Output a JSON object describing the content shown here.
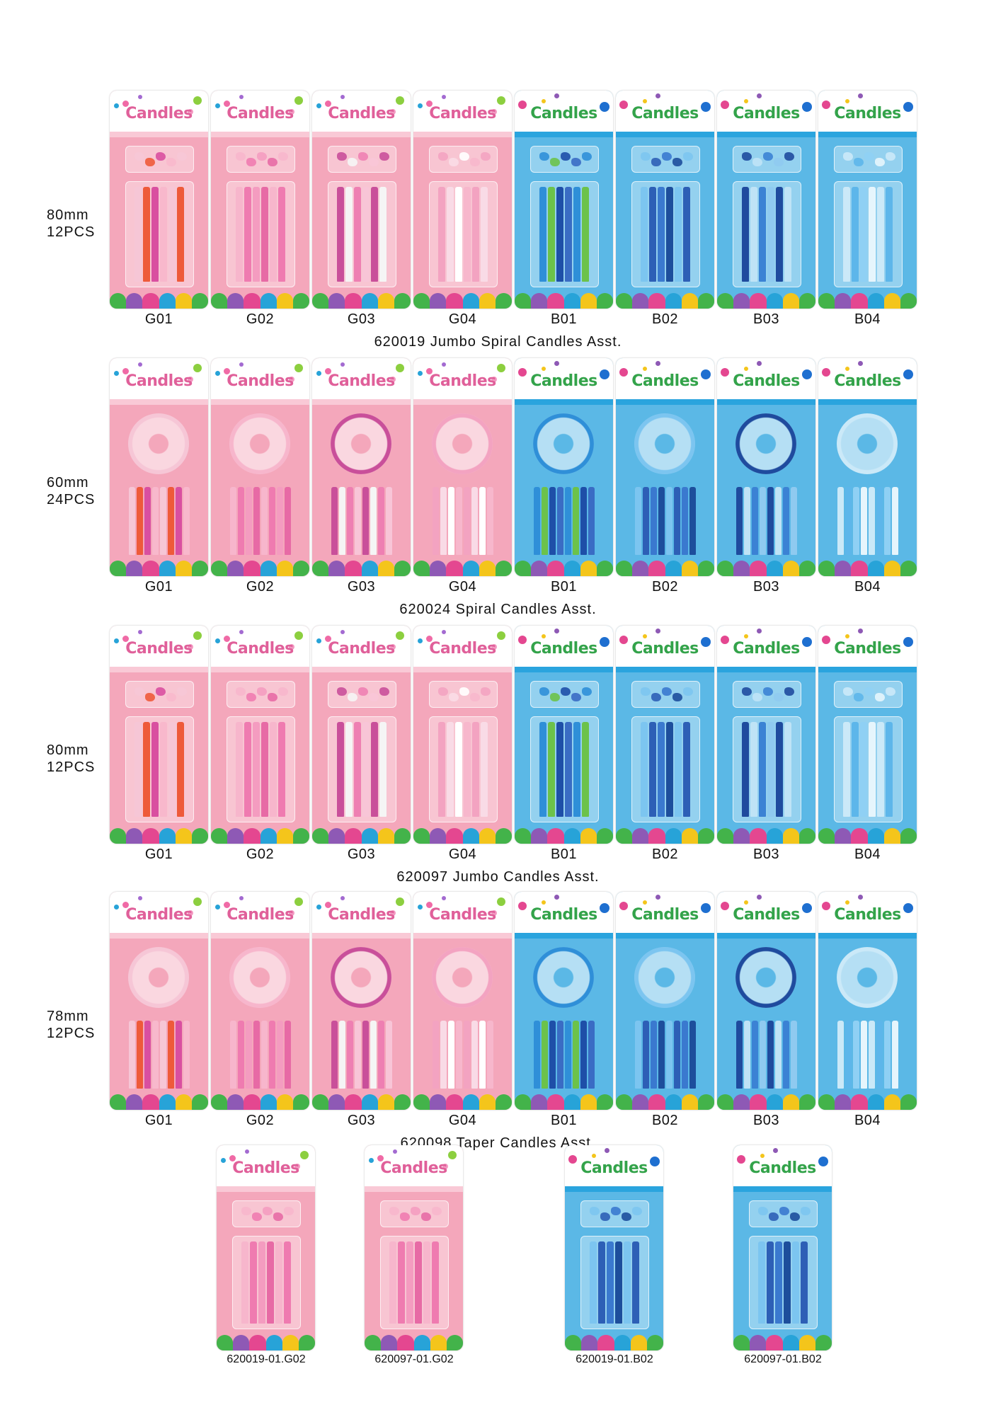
{
  "card_title": "Candles",
  "colors": {
    "pink_bg": "#f4a7bb",
    "blue_bg": "#5bb8e6",
    "pink_band": "#f9c9d6",
    "blue_band": "#2aa4de"
  },
  "sections": [
    {
      "spec_size": "80mm",
      "spec_count": "12PCS",
      "caption": "620019  Jumbo Spiral Candles Asst.",
      "style": "bows",
      "codes": [
        "G01",
        "G02",
        "G03",
        "G04",
        "B01",
        "B02",
        "B03",
        "B04"
      ]
    },
    {
      "spec_size": "60mm",
      "spec_count": "24PCS",
      "caption": "620024  Spiral Candles Asst.",
      "style": "holder",
      "codes": [
        "G01",
        "G02",
        "G03",
        "G04",
        "B01",
        "B02",
        "B03",
        "B04"
      ]
    },
    {
      "spec_size": "80mm",
      "spec_count": "12PCS",
      "caption": "620097  Jumbo Candles Asst.",
      "style": "bows",
      "codes": [
        "G01",
        "G02",
        "G03",
        "G04",
        "B01",
        "B02",
        "B03",
        "B04"
      ]
    },
    {
      "spec_size": "78mm",
      "spec_count": "12PCS",
      "caption": "620098  Taper Candles Asst.",
      "style": "holder",
      "codes": [
        "G01",
        "G02",
        "G03",
        "G04",
        "B01",
        "B02",
        "B03",
        "B04"
      ]
    }
  ],
  "singles": [
    {
      "code": "620019-01.G02",
      "theme": "pink"
    },
    {
      "code": "620097-01.G02",
      "theme": "pink"
    },
    {
      "code": "620019-01.B02",
      "theme": "blue"
    },
    {
      "code": "620097-01.B02",
      "theme": "blue"
    }
  ]
}
